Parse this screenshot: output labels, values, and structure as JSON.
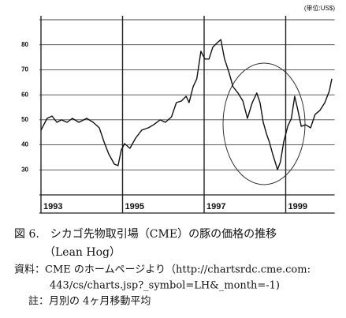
{
  "chart_data": {
    "type": "line",
    "unit": "(単位:US$)",
    "x": [
      1993.0,
      1993.15,
      1993.27,
      1993.39,
      1993.5,
      1993.64,
      1993.77,
      1993.93,
      1994.12,
      1994.28,
      1994.43,
      1994.55,
      1994.66,
      1994.8,
      1994.89,
      1994.97,
      1995.05,
      1995.18,
      1995.32,
      1995.47,
      1995.63,
      1995.76,
      1995.92,
      1996.05,
      1996.2,
      1996.32,
      1996.44,
      1996.56,
      1996.63,
      1996.73,
      1996.82,
      1996.92,
      1997.02,
      1997.12,
      1997.21,
      1997.31,
      1997.41,
      1997.5,
      1997.6,
      1997.71,
      1997.83,
      1997.95,
      1998.06,
      1998.18,
      1998.29,
      1998.37,
      1998.45,
      1998.53,
      1998.6,
      1998.68,
      1998.8,
      1998.87,
      1998.95,
      1999.05,
      1999.14,
      1999.22,
      1999.3,
      1999.38,
      1999.49,
      1999.61,
      1999.72,
      1999.84,
      1999.96,
      2000.07,
      2000.13
    ],
    "series": [
      {
        "color": "#111111",
        "values": [
          45.9,
          50.6,
          51.5,
          49,
          50,
          49,
          50.6,
          49,
          50.6,
          49,
          46.8,
          41,
          36.4,
          32.3,
          31.7,
          38,
          40.5,
          38.6,
          42.7,
          45.9,
          46.8,
          48,
          50,
          49,
          51.2,
          56.9,
          57.5,
          59.4,
          56.9,
          63.2,
          66.4,
          77.4,
          74.3,
          74.3,
          79,
          80.6,
          82.1,
          74.3,
          69.5,
          63.2,
          60.7,
          57.5,
          50.6,
          56.9,
          60.7,
          56.9,
          49,
          44.3,
          41.1,
          36.4,
          30.1,
          33.2,
          41.1,
          47.4,
          50.6,
          59.4,
          53.8,
          47.4,
          48,
          46.8,
          52.2,
          53.8,
          56.9,
          61.6,
          66.4
        ]
      }
    ],
    "xlim": [
      1993,
      2000.2
    ],
    "ylim": [
      20,
      90
    ],
    "xticks": [
      1993,
      1995,
      1997,
      1999
    ],
    "yticks": [
      30,
      40,
      50,
      60,
      70,
      80
    ],
    "grid": true
  },
  "caption": {
    "title": "図 6.　シカゴ先物取引場（CME）の豚の価格の推移",
    "subtitle": "（Lean Hog）",
    "source": [
      "資料：CME のホームページより（http://chartsrdc.cme.com:",
      "443/cs/charts.jsp?_symbol=LH&_month=-1)"
    ],
    "note": "註：月別の 4ヶ月移動平均"
  }
}
